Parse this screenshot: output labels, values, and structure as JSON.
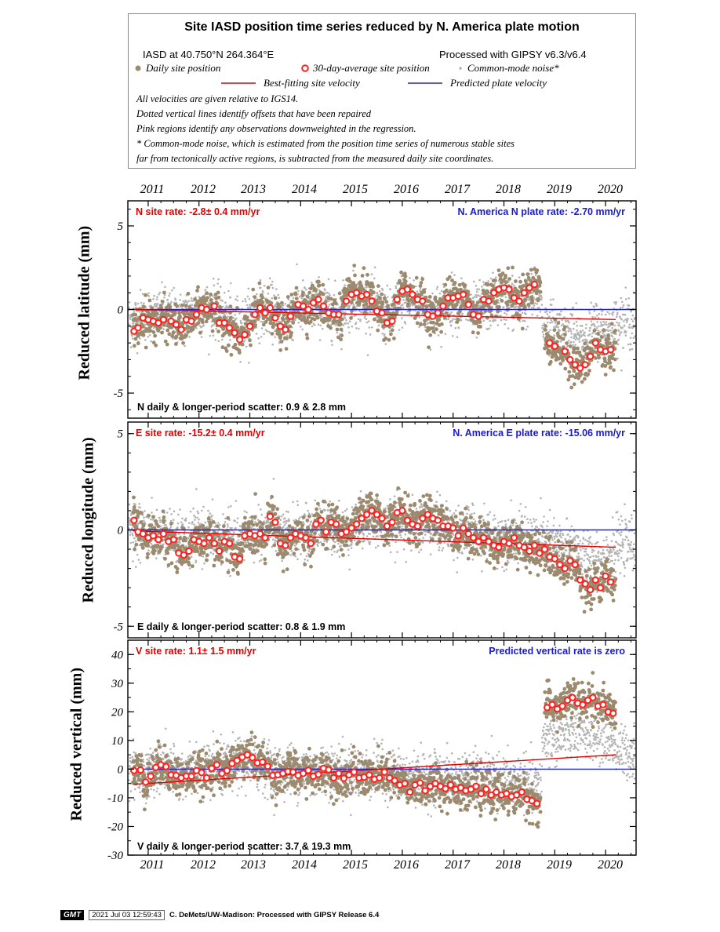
{
  "legend": {
    "title": "Site IASD position time series reduced by N. America plate motion",
    "site_coords": "IASD at 40.750°N 264.364°E",
    "processed_with": "Processed with GIPSY v6.3/v6.4",
    "daily_label": "Daily site position",
    "avg_label": "30-day-average site position",
    "cmn_label": "Common-mode noise*",
    "best_fit_label": "Best-fitting site velocity",
    "plate_label": "Predicted plate velocity",
    "notes": [
      "All velocities are given relative to IGS14.",
      "Dotted vertical lines identify offsets that have been repaired",
      "Pink regions identify any observations downweighted in the regression.",
      "* Common-mode noise, which is estimated from the position time series of numerous stable sites",
      "far from tectonically active regions, is subtracted from the measured daily site coordinates."
    ],
    "colors": {
      "daily": "#9c8a6e",
      "avg_stroke": "#ff2020",
      "cmn": "#b4b4b4",
      "best_fit": "#e00000",
      "plate": "#2020e0"
    }
  },
  "years": [
    "2011",
    "2012",
    "2013",
    "2014",
    "2015",
    "2016",
    "2017",
    "2018",
    "2019",
    "2020"
  ],
  "panels": [
    {
      "ylabel": "Reduced latitude (mm)",
      "rate_left": "N site rate:  -2.8± 0.4 mm/yr",
      "rate_right": "N. America N plate rate: -2.70 mm/yr",
      "scatter": "N daily & longer-period scatter:   0.9 &   2.8 mm",
      "ticks": [
        "5",
        "0",
        "-5"
      ]
    },
    {
      "ylabel": "Reduced longitude (mm)",
      "rate_left": "E site rate:  -15.2± 0.4 mm/yr",
      "rate_right": "N. America E plate rate: -15.06 mm/yr",
      "scatter": "E daily & longer-period scatter:   0.8 &   1.9 mm",
      "ticks": [
        "5",
        "0",
        "-5"
      ]
    },
    {
      "ylabel": "Reduced vertical (mm)",
      "rate_left": "V site rate:   1.1± 1.5 mm/yr",
      "rate_right": "Predicted vertical rate is zero",
      "scatter": "V daily & longer-period scatter:   3.7 &  19.3 mm",
      "ticks": [
        "40",
        "30",
        "20",
        "10",
        "0",
        "-10",
        "-20",
        "-30"
      ]
    }
  ],
  "footer": {
    "logo": "GMT",
    "timestamp": "2021 Jul 03 12:59:43",
    "credit": "C. DeMets/UW-Madison: Processed with GIPSY Release 6.4"
  },
  "chart_data": [
    {
      "type": "scatter",
      "ylabel": "Reduced latitude (mm)",
      "xlim": [
        2010.6,
        2020.6
      ],
      "ylim": [
        -6.5,
        6.5
      ],
      "best_fit_line": [
        [
          2010.7,
          0.0
        ],
        [
          2020.2,
          -0.6
        ]
      ],
      "plate_line": [
        [
          2010.6,
          0.0
        ],
        [
          2020.6,
          0.0
        ]
      ],
      "avg_points": [
        [
          2010.72,
          -1.3
        ],
        [
          2010.8,
          -1.1
        ],
        [
          2010.9,
          -0.5
        ],
        [
          2011.0,
          -0.6
        ],
        [
          2011.1,
          -0.7
        ],
        [
          2011.2,
          -0.8
        ],
        [
          2011.3,
          -0.6
        ],
        [
          2011.45,
          -0.7
        ],
        [
          2011.55,
          -0.9
        ],
        [
          2011.65,
          -1.2
        ],
        [
          2011.75,
          -0.6
        ],
        [
          2011.85,
          -0.7
        ],
        [
          2011.95,
          -0.3
        ],
        [
          2012.05,
          0.1
        ],
        [
          2012.15,
          0.0
        ],
        [
          2012.3,
          0.2
        ],
        [
          2012.4,
          -0.8
        ],
        [
          2012.5,
          -0.8
        ],
        [
          2012.6,
          -1.1
        ],
        [
          2012.7,
          -1.4
        ],
        [
          2012.8,
          -1.8
        ],
        [
          2012.9,
          -1.5
        ],
        [
          2013.0,
          -1.0
        ],
        [
          2013.1,
          -0.3
        ],
        [
          2013.2,
          0.1
        ],
        [
          2013.3,
          -0.2
        ],
        [
          2013.4,
          0.1
        ],
        [
          2013.5,
          -0.5
        ],
        [
          2013.6,
          -1.0
        ],
        [
          2013.7,
          -1.2
        ],
        [
          2013.8,
          -0.4
        ],
        [
          2013.95,
          0.3
        ],
        [
          2014.05,
          0.2
        ],
        [
          2014.15,
          0.0
        ],
        [
          2014.25,
          0.4
        ],
        [
          2014.35,
          0.6
        ],
        [
          2014.45,
          0.2
        ],
        [
          2014.55,
          -0.2
        ],
        [
          2014.65,
          -0.3
        ],
        [
          2014.75,
          -0.3
        ],
        [
          2014.9,
          0.5
        ],
        [
          2015.0,
          0.9
        ],
        [
          2015.1,
          1.0
        ],
        [
          2015.2,
          0.8
        ],
        [
          2015.3,
          0.9
        ],
        [
          2015.4,
          0.5
        ],
        [
          2015.5,
          -0.1
        ],
        [
          2015.6,
          -0.2
        ],
        [
          2015.7,
          -0.8
        ],
        [
          2015.8,
          -0.7
        ],
        [
          2015.9,
          0.6
        ],
        [
          2016.0,
          1.1
        ],
        [
          2016.1,
          1.2
        ],
        [
          2016.2,
          0.9
        ],
        [
          2016.3,
          0.6
        ],
        [
          2016.4,
          0.5
        ],
        [
          2016.5,
          -0.3
        ],
        [
          2016.6,
          -0.4
        ],
        [
          2016.7,
          -0.2
        ],
        [
          2016.8,
          0.2
        ],
        [
          2016.9,
          0.7
        ],
        [
          2017.0,
          0.7
        ],
        [
          2017.1,
          0.8
        ],
        [
          2017.2,
          0.9
        ],
        [
          2017.3,
          0.3
        ],
        [
          2017.4,
          -0.3
        ],
        [
          2017.5,
          -0.4
        ],
        [
          2017.6,
          0.6
        ],
        [
          2017.7,
          0.5
        ],
        [
          2017.8,
          1.0
        ],
        [
          2017.9,
          1.2
        ],
        [
          2018.0,
          1.3
        ],
        [
          2018.1,
          1.2
        ],
        [
          2018.2,
          0.7
        ],
        [
          2018.3,
          0.5
        ],
        [
          2018.4,
          1.0
        ],
        [
          2018.5,
          1.3
        ],
        [
          2018.6,
          1.5
        ],
        [
          2018.9,
          -2.0
        ],
        [
          2019.0,
          -2.2
        ],
        [
          2019.2,
          -2.5
        ],
        [
          2019.3,
          -3.0
        ],
        [
          2019.4,
          -3.3
        ],
        [
          2019.5,
          -3.5
        ],
        [
          2019.6,
          -3.3
        ],
        [
          2019.7,
          -2.8
        ],
        [
          2019.8,
          -2.0
        ],
        [
          2019.9,
          -2.4
        ],
        [
          2020.0,
          -2.5
        ],
        [
          2020.1,
          -2.4
        ]
      ]
    },
    {
      "type": "scatter",
      "ylabel": "Reduced longitude (mm)",
      "xlim": [
        2010.6,
        2020.6
      ],
      "ylim": [
        -5.6,
        5.6
      ],
      "best_fit_line": [
        [
          2010.7,
          -0.05
        ],
        [
          2020.2,
          -0.9
        ]
      ],
      "plate_line": [
        [
          2010.6,
          0.0
        ],
        [
          2020.6,
          0.0
        ]
      ],
      "avg_points": [
        [
          2010.72,
          0.5
        ],
        [
          2010.8,
          -0.1
        ],
        [
          2010.9,
          -0.2
        ],
        [
          2011.0,
          -0.4
        ],
        [
          2011.1,
          -0.3
        ],
        [
          2011.2,
          -0.5
        ],
        [
          2011.3,
          -0.2
        ],
        [
          2011.4,
          -0.6
        ],
        [
          2011.5,
          -0.5
        ],
        [
          2011.6,
          -1.2
        ],
        [
          2011.7,
          -1.3
        ],
        [
          2011.8,
          -1.1
        ],
        [
          2011.9,
          -0.5
        ],
        [
          2012.0,
          -0.6
        ],
        [
          2012.1,
          -0.7
        ],
        [
          2012.2,
          -0.4
        ],
        [
          2012.3,
          -0.7
        ],
        [
          2012.4,
          -1.1
        ],
        [
          2012.5,
          -0.6
        ],
        [
          2012.6,
          -0.7
        ],
        [
          2012.7,
          -1.4
        ],
        [
          2012.8,
          -1.5
        ],
        [
          2012.9,
          -0.3
        ],
        [
          2013.0,
          -0.2
        ],
        [
          2013.1,
          -0.3
        ],
        [
          2013.2,
          -0.2
        ],
        [
          2013.3,
          -0.4
        ],
        [
          2013.4,
          0.7
        ],
        [
          2013.5,
          0.4
        ],
        [
          2013.6,
          -0.7
        ],
        [
          2013.7,
          -0.8
        ],
        [
          2013.8,
          -0.4
        ],
        [
          2013.9,
          -0.2
        ],
        [
          2014.0,
          -0.3
        ],
        [
          2014.1,
          -0.4
        ],
        [
          2014.2,
          -0.7
        ],
        [
          2014.3,
          0.3
        ],
        [
          2014.4,
          0.5
        ],
        [
          2014.5,
          -0.1
        ],
        [
          2014.6,
          0.4
        ],
        [
          2014.7,
          0.3
        ],
        [
          2014.8,
          -0.2
        ],
        [
          2014.9,
          -0.1
        ],
        [
          2015.0,
          0.1
        ],
        [
          2015.1,
          0.3
        ],
        [
          2015.2,
          0.6
        ],
        [
          2015.3,
          0.8
        ],
        [
          2015.4,
          1.0
        ],
        [
          2015.5,
          0.8
        ],
        [
          2015.6,
          0.6
        ],
        [
          2015.7,
          0.2
        ],
        [
          2015.8,
          0.4
        ],
        [
          2015.9,
          0.9
        ],
        [
          2016.0,
          1.0
        ],
        [
          2016.1,
          0.5
        ],
        [
          2016.2,
          0.3
        ],
        [
          2016.3,
          0.2
        ],
        [
          2016.4,
          0.6
        ],
        [
          2016.5,
          0.8
        ],
        [
          2016.6,
          0.6
        ],
        [
          2016.7,
          0.5
        ],
        [
          2016.8,
          0.2
        ],
        [
          2016.9,
          0.2
        ],
        [
          2017.0,
          0.1
        ],
        [
          2017.1,
          -0.3
        ],
        [
          2017.2,
          0.1
        ],
        [
          2017.3,
          -0.2
        ],
        [
          2017.4,
          -0.4
        ],
        [
          2017.5,
          -0.6
        ],
        [
          2017.6,
          -0.4
        ],
        [
          2017.7,
          -0.6
        ],
        [
          2017.8,
          -0.8
        ],
        [
          2017.9,
          -0.9
        ],
        [
          2018.0,
          -0.6
        ],
        [
          2018.1,
          -0.7
        ],
        [
          2018.2,
          -0.4
        ],
        [
          2018.3,
          -0.8
        ],
        [
          2018.4,
          -0.9
        ],
        [
          2018.5,
          -1.1
        ],
        [
          2018.6,
          -0.8
        ],
        [
          2018.7,
          -1.2
        ],
        [
          2018.8,
          -1.0
        ],
        [
          2018.9,
          -1.4
        ],
        [
          2019.0,
          -1.5
        ],
        [
          2019.1,
          -1.8
        ],
        [
          2019.2,
          -2.0
        ],
        [
          2019.3,
          -1.6
        ],
        [
          2019.4,
          -1.8
        ],
        [
          2019.5,
          -2.6
        ],
        [
          2019.6,
          -2.8
        ],
        [
          2019.7,
          -3.1
        ],
        [
          2019.8,
          -2.6
        ],
        [
          2019.9,
          -3.0
        ],
        [
          2020.0,
          -2.4
        ],
        [
          2020.1,
          -2.7
        ]
      ]
    },
    {
      "type": "scatter",
      "ylabel": "Reduced vertical (mm)",
      "xlim": [
        2010.6,
        2020.6
      ],
      "ylim": [
        -30,
        45
      ],
      "best_fit_line": [
        [
          2010.7,
          -5.3
        ],
        [
          2020.2,
          5.0
        ]
      ],
      "plate_line": [
        [
          2010.6,
          0.0
        ],
        [
          2020.6,
          0.0
        ]
      ],
      "avg_points": [
        [
          2010.72,
          -0.5
        ],
        [
          2010.85,
          -0.3
        ],
        [
          2010.95,
          -4.5
        ],
        [
          2011.05,
          -2.5
        ],
        [
          2011.15,
          0.6
        ],
        [
          2011.25,
          1.5
        ],
        [
          2011.35,
          0.9
        ],
        [
          2011.45,
          -2.0
        ],
        [
          2011.55,
          -2.2
        ],
        [
          2011.65,
          -3.0
        ],
        [
          2011.75,
          -2.4
        ],
        [
          2011.85,
          -2.5
        ],
        [
          2011.95,
          -0.5
        ],
        [
          2012.05,
          -1.2
        ],
        [
          2012.15,
          -3.0
        ],
        [
          2012.25,
          0.3
        ],
        [
          2012.35,
          1.5
        ],
        [
          2012.45,
          -1.5
        ],
        [
          2012.55,
          -0.5
        ],
        [
          2012.65,
          2.0
        ],
        [
          2012.75,
          3.0
        ],
        [
          2012.85,
          4.2
        ],
        [
          2012.95,
          5.0
        ],
        [
          2013.05,
          4.0
        ],
        [
          2013.15,
          2.2
        ],
        [
          2013.25,
          2.5
        ],
        [
          2013.35,
          1.0
        ],
        [
          2013.45,
          -2.2
        ],
        [
          2013.55,
          -2.0
        ],
        [
          2013.65,
          -1.5
        ],
        [
          2013.75,
          -0.8
        ],
        [
          2013.85,
          -1.0
        ],
        [
          2013.95,
          -2.2
        ],
        [
          2014.05,
          -1.5
        ],
        [
          2014.15,
          -0.4
        ],
        [
          2014.25,
          -2.5
        ],
        [
          2014.35,
          -1.8
        ],
        [
          2014.45,
          0.3
        ],
        [
          2014.55,
          -0.2
        ],
        [
          2014.65,
          -3.0
        ],
        [
          2014.75,
          -1.5
        ],
        [
          2014.85,
          -3.2
        ],
        [
          2014.95,
          -2.0
        ],
        [
          2015.05,
          -1.0
        ],
        [
          2015.15,
          -3.0
        ],
        [
          2015.25,
          -2.8
        ],
        [
          2015.35,
          -2.0
        ],
        [
          2015.45,
          -3.5
        ],
        [
          2015.55,
          -3.0
        ],
        [
          2015.65,
          -1.0
        ],
        [
          2015.75,
          -3.0
        ],
        [
          2015.85,
          -4.0
        ],
        [
          2015.95,
          -5.5
        ],
        [
          2016.05,
          -5.0
        ],
        [
          2016.15,
          -8.0
        ],
        [
          2016.25,
          -5.5
        ],
        [
          2016.35,
          -4.8
        ],
        [
          2016.45,
          -7.5
        ],
        [
          2016.55,
          -6.0
        ],
        [
          2016.65,
          -5.0
        ],
        [
          2016.75,
          -6.0
        ],
        [
          2016.85,
          -6.8
        ],
        [
          2016.95,
          -5.5
        ],
        [
          2017.05,
          -7.0
        ],
        [
          2017.15,
          -6.5
        ],
        [
          2017.25,
          -7.5
        ],
        [
          2017.35,
          -7.0
        ],
        [
          2017.45,
          -6.0
        ],
        [
          2017.55,
          -8.5
        ],
        [
          2017.65,
          -7.0
        ],
        [
          2017.75,
          -9.0
        ],
        [
          2017.85,
          -8.0
        ],
        [
          2017.95,
          -9.0
        ],
        [
          2018.05,
          -8.5
        ],
        [
          2018.15,
          -9.5
        ],
        [
          2018.25,
          -9.0
        ],
        [
          2018.35,
          -8.0
        ],
        [
          2018.45,
          -10.5
        ],
        [
          2018.55,
          -11.0
        ],
        [
          2018.65,
          -12.0
        ],
        [
          2018.85,
          21.5
        ],
        [
          2018.95,
          22.5
        ],
        [
          2019.05,
          21.0
        ],
        [
          2019.15,
          22.0
        ],
        [
          2019.25,
          24.0
        ],
        [
          2019.35,
          25.0
        ],
        [
          2019.45,
          23.0
        ],
        [
          2019.55,
          22.5
        ],
        [
          2019.65,
          24.0
        ],
        [
          2019.75,
          25.0
        ],
        [
          2019.85,
          22.0
        ],
        [
          2019.95,
          22.5
        ],
        [
          2020.05,
          20.0
        ],
        [
          2020.15,
          19.5
        ]
      ]
    }
  ]
}
